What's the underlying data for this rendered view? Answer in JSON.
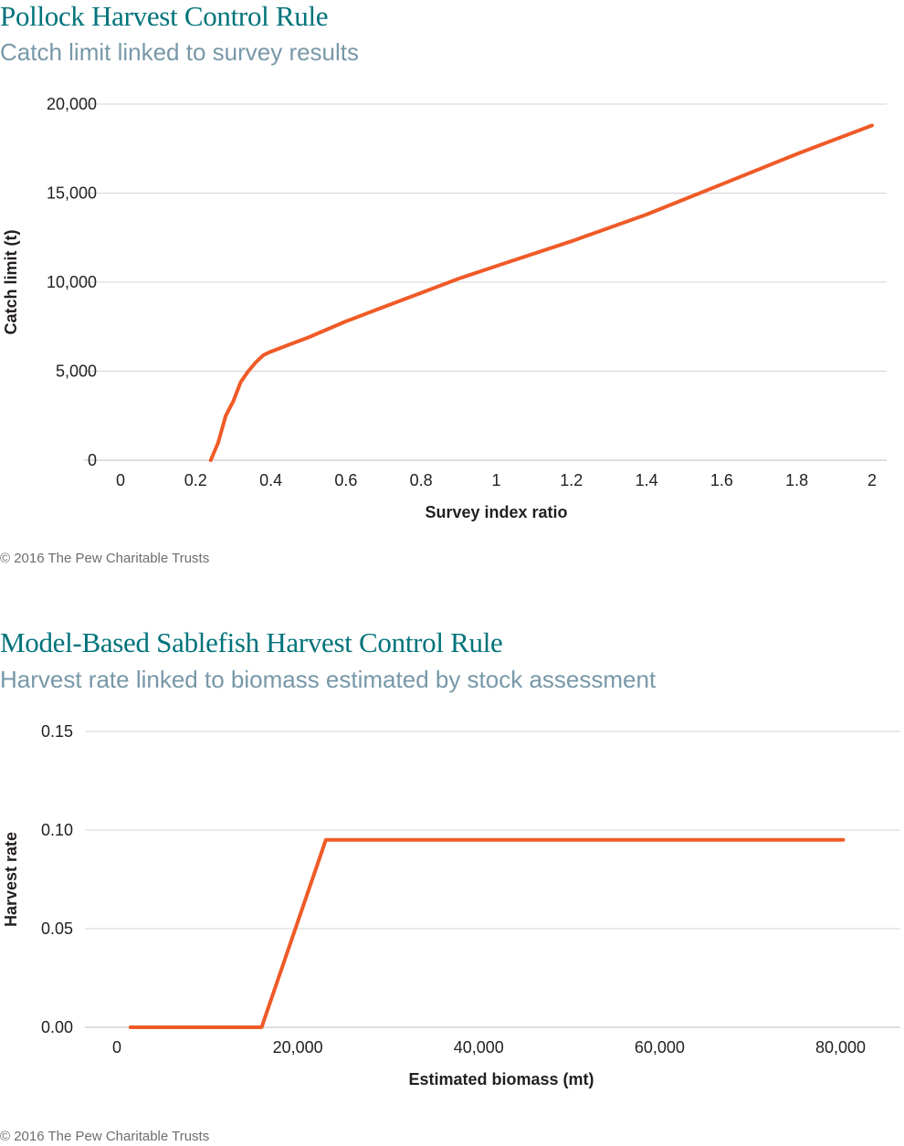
{
  "colors": {
    "title": "#00737a",
    "subtitle": "#7898a8",
    "line": "#ef5a27",
    "grid": "#d4d4d4",
    "text": "#231f20",
    "credit": "#6d6e71"
  },
  "chart_data": [
    {
      "type": "line",
      "title": "Pollock Harvest Control Rule",
      "subtitle": "Catch limit linked to survey results",
      "xlabel": "Survey index ratio",
      "ylabel": "Catch limit (t)",
      "xlim": [
        0,
        2
      ],
      "ylim": [
        0,
        20000
      ],
      "x_ticks": [
        "0",
        "0.2",
        "0.4",
        "0.6",
        "0.8",
        "1",
        "1.2",
        "1.4",
        "1.6",
        "1.8",
        "2"
      ],
      "y_ticks": [
        "0",
        "5,000",
        "10,000",
        "15,000",
        "20,000"
      ],
      "grid": true,
      "legend": "none",
      "credit": "© 2016 The Pew Charitable Trusts",
      "series": [
        {
          "x": [
            0.24,
            0.26,
            0.28,
            0.3,
            0.32,
            0.34,
            0.36,
            0.38,
            0.4,
            0.45,
            0.5,
            0.6,
            0.7,
            0.8,
            0.9,
            1.0,
            1.2,
            1.4,
            1.6,
            1.8,
            2.0
          ],
          "y": [
            0,
            1000,
            2500,
            3300,
            4400,
            5000,
            5500,
            5900,
            6100,
            6500,
            6900,
            7800,
            8600,
            9400,
            10200,
            10900,
            12300,
            13800,
            15500,
            17200,
            18800
          ]
        }
      ]
    },
    {
      "type": "line",
      "title": "Model-Based Sablefish Harvest Control Rule",
      "subtitle": "Harvest rate linked to biomass estimated by stock assessment",
      "xlabel": "Estimated biomass (mt)",
      "ylabel": "Harvest rate",
      "xlim": [
        0,
        85000
      ],
      "ylim": [
        0,
        0.15
      ],
      "x_ticks_values": [
        0,
        20000,
        40000,
        60000,
        80000
      ],
      "x_ticks": [
        "0",
        "20,000",
        "40,000",
        "60,000",
        "80,000"
      ],
      "y_ticks": [
        "0.00",
        "0.05",
        "0.10",
        "0.15"
      ],
      "grid": true,
      "legend": "none",
      "credit": "© 2016 The Pew Charitable Trusts",
      "series": [
        {
          "x": [
            1500,
            16000,
            23100,
            80300
          ],
          "y": [
            0,
            0,
            0.095,
            0.095
          ]
        }
      ]
    }
  ]
}
